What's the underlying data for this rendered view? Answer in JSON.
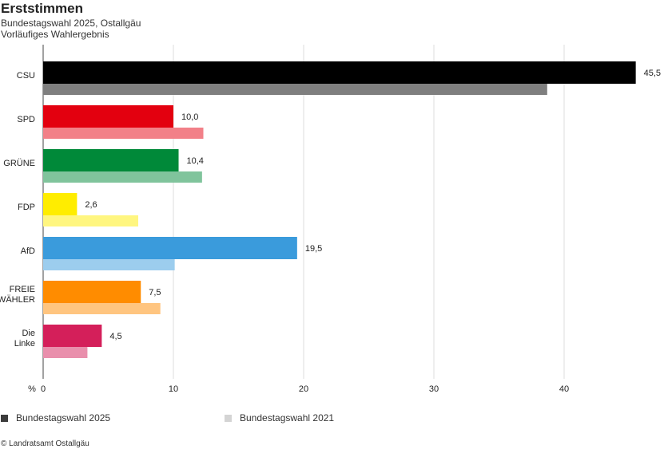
{
  "header": {
    "title": "Erststimmen",
    "subtitle_line1": "Bundestagswahl 2025, Ostallgäu",
    "subtitle_line2": "Vorläufiges Wahlergebnis"
  },
  "chart_data": {
    "type": "bar",
    "orientation": "horizontal",
    "categories": [
      [
        "CSU"
      ],
      [
        "SPD"
      ],
      [
        "GRÜNE"
      ],
      [
        "FDP"
      ],
      [
        "AfD"
      ],
      [
        "FREIE",
        "WÄHLER"
      ],
      [
        "Die",
        "Linke"
      ]
    ],
    "series": [
      {
        "name": "Bundestagswahl 2025",
        "values": [
          45.5,
          10.0,
          10.4,
          2.6,
          19.5,
          7.5,
          4.5
        ],
        "labels": [
          "45,5",
          "10,0",
          "10,4",
          "2,6",
          "19,5",
          "7,5",
          "4,5"
        ],
        "colors": [
          "#000000",
          "#e3000f",
          "#008939",
          "#ffed00",
          "#3a9bdc",
          "#ff8c00",
          "#d41f5a"
        ]
      },
      {
        "name": "Bundestagswahl 2021",
        "values": [
          38.7,
          12.3,
          12.2,
          7.3,
          10.1,
          9.0,
          3.4
        ],
        "colors": [
          "#7f7f7f",
          "#f28088",
          "#80c49c",
          "#fff680",
          "#9ccdee",
          "#ffc580",
          "#e98fac"
        ]
      }
    ],
    "xlabel": "%",
    "xlim": [
      0,
      47
    ],
    "xticks": [
      0,
      10,
      20,
      30,
      40
    ],
    "grid": true,
    "legend_position": "bottom",
    "legend_colors": [
      "#3c3c3c",
      "#d4d4d4"
    ]
  },
  "footer": {
    "source": "© Landratsamt Ostallgäu"
  }
}
